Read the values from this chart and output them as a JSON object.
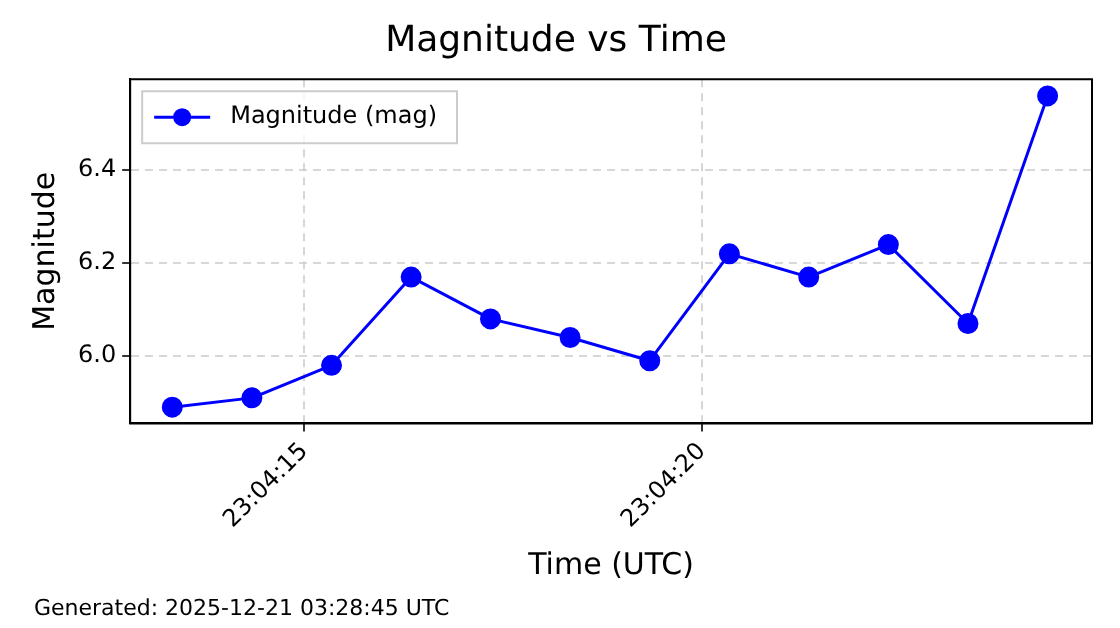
{
  "chart_data": {
    "type": "line",
    "title": "Magnitude vs Time",
    "xlabel": "Time (UTC)",
    "ylabel": "Magnitude",
    "x": [
      23.070372,
      23.07065,
      23.070928,
      23.071206,
      23.071483,
      23.071761,
      23.072039,
      23.072317,
      23.072594,
      23.072872,
      23.07315,
      23.073428
    ],
    "series": [
      {
        "name": "Magnitude (mag)",
        "color": "#0000ff",
        "values": [
          5.89,
          5.91,
          5.98,
          6.17,
          6.08,
          6.04,
          5.99,
          6.22,
          6.17,
          6.24,
          6.07,
          6.56
        ]
      }
    ],
    "xlim": [
      23.070225,
      23.073583
    ],
    "xticks": [
      {
        "value": 23.070833,
        "label": "23:04:15"
      },
      {
        "value": 23.072222,
        "label": "23:04:20"
      }
    ],
    "ylim": [
      5.855,
      6.596
    ],
    "yticks": [
      {
        "value": 6.0,
        "label": "6.0"
      },
      {
        "value": 6.2,
        "label": "6.2"
      },
      {
        "value": 6.4,
        "label": "6.4"
      }
    ],
    "grid": true,
    "legend": "top left",
    "marker": "circle",
    "line_style": "solid",
    "annotations": [
      "Generated: 2025-12-21 03:28:45 UTC"
    ]
  }
}
